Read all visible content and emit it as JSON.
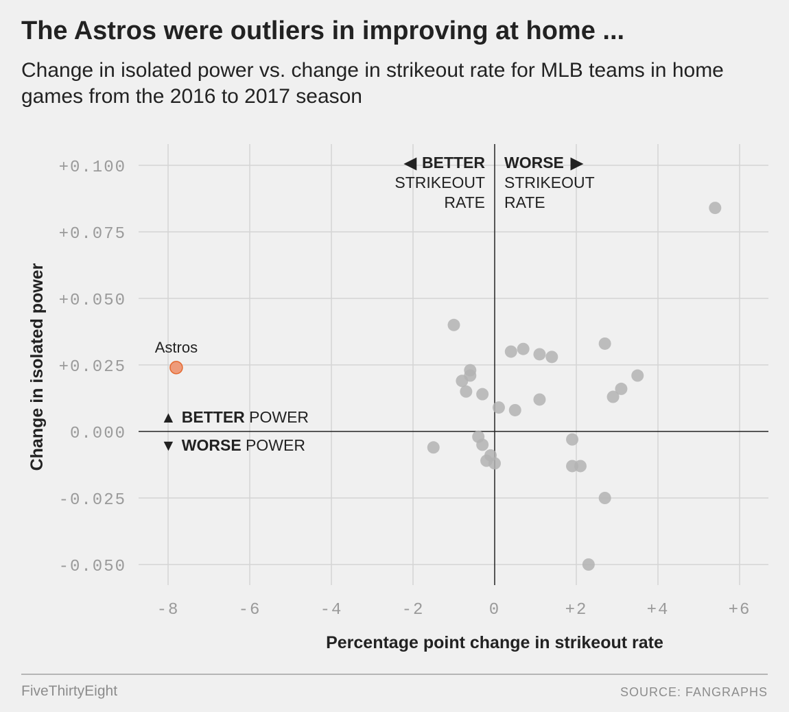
{
  "header": {
    "title": "The Astros were outliers in improving at home ...",
    "subtitle": "Change in isolated power vs. change in strikeout rate for MLB teams in home games from the 2016 to 2017 season"
  },
  "footer": {
    "brand": "FiveThirtyEight",
    "source": "SOURCE: FANGRAPHS"
  },
  "chart_data": {
    "type": "scatter",
    "title": "The Astros were outliers in improving at home ...",
    "subtitle": "Change in isolated power vs. change in strikeout rate for MLB teams in home games from the 2016 to 2017 season",
    "xlabel": "Percentage point change in strikeout rate",
    "ylabel": "Change in isolated power",
    "xlim": [
      -8.7,
      6.9
    ],
    "ylim": [
      -0.058,
      0.108
    ],
    "x_ticks": [
      -8,
      -6,
      -4,
      -2,
      0,
      2,
      4,
      6
    ],
    "x_tick_labels": [
      "-8",
      "-6",
      "-4",
      "-2",
      "0",
      "+2",
      "+4",
      "+6"
    ],
    "y_ticks": [
      0.1,
      0.075,
      0.05,
      0.025,
      0,
      -0.025,
      -0.05
    ],
    "y_tick_labels": [
      "+0.100",
      "+0.075",
      "+0.050",
      "+0.025",
      "0.000",
      "-0.025",
      "-0.050"
    ],
    "grid": true,
    "colors": {
      "team": "#b3b3b3",
      "highlight": "#ee9b7a",
      "highlight_stroke": "#e4682f",
      "grid": "#d4d4d4",
      "zero_line": "#222222"
    },
    "annotations": {
      "better_k": {
        "bold": "BETTER",
        "line2": "STRIKEOUT",
        "line3": "RATE",
        "arrow": "◀"
      },
      "worse_k": {
        "bold": "WORSE",
        "line2": "STRIKEOUT",
        "line3": "RATE",
        "arrow": "▶"
      },
      "better_power": {
        "arrow": "▲",
        "bold": "BETTER",
        "rest": " POWER"
      },
      "worse_power": {
        "arrow": "▼",
        "bold": "WORSE",
        "rest": " POWER"
      }
    },
    "highlight": {
      "label": "Astros",
      "x": -7.8,
      "y": 0.024
    },
    "points": [
      {
        "x": 5.4,
        "y": 0.084
      },
      {
        "x": -1.0,
        "y": 0.04
      },
      {
        "x": 2.7,
        "y": 0.033
      },
      {
        "x": 0.4,
        "y": 0.03
      },
      {
        "x": 0.7,
        "y": 0.031
      },
      {
        "x": 1.1,
        "y": 0.029
      },
      {
        "x": 1.4,
        "y": 0.028
      },
      {
        "x": -0.6,
        "y": 0.023
      },
      {
        "x": -0.6,
        "y": 0.021
      },
      {
        "x": -0.8,
        "y": 0.019
      },
      {
        "x": -0.7,
        "y": 0.015
      },
      {
        "x": -0.3,
        "y": 0.014
      },
      {
        "x": 3.5,
        "y": 0.021
      },
      {
        "x": 3.1,
        "y": 0.016
      },
      {
        "x": 2.9,
        "y": 0.013
      },
      {
        "x": 1.1,
        "y": 0.012
      },
      {
        "x": 0.1,
        "y": 0.009
      },
      {
        "x": 0.5,
        "y": 0.008
      },
      {
        "x": -1.5,
        "y": -0.006
      },
      {
        "x": -0.4,
        "y": -0.002
      },
      {
        "x": -0.3,
        "y": -0.005
      },
      {
        "x": -0.1,
        "y": -0.009
      },
      {
        "x": -0.2,
        "y": -0.011
      },
      {
        "x": 0.0,
        "y": -0.012
      },
      {
        "x": 1.9,
        "y": -0.003
      },
      {
        "x": 1.9,
        "y": -0.013
      },
      {
        "x": 2.1,
        "y": -0.013
      },
      {
        "x": 2.7,
        "y": -0.025
      },
      {
        "x": 2.3,
        "y": -0.05
      }
    ]
  }
}
